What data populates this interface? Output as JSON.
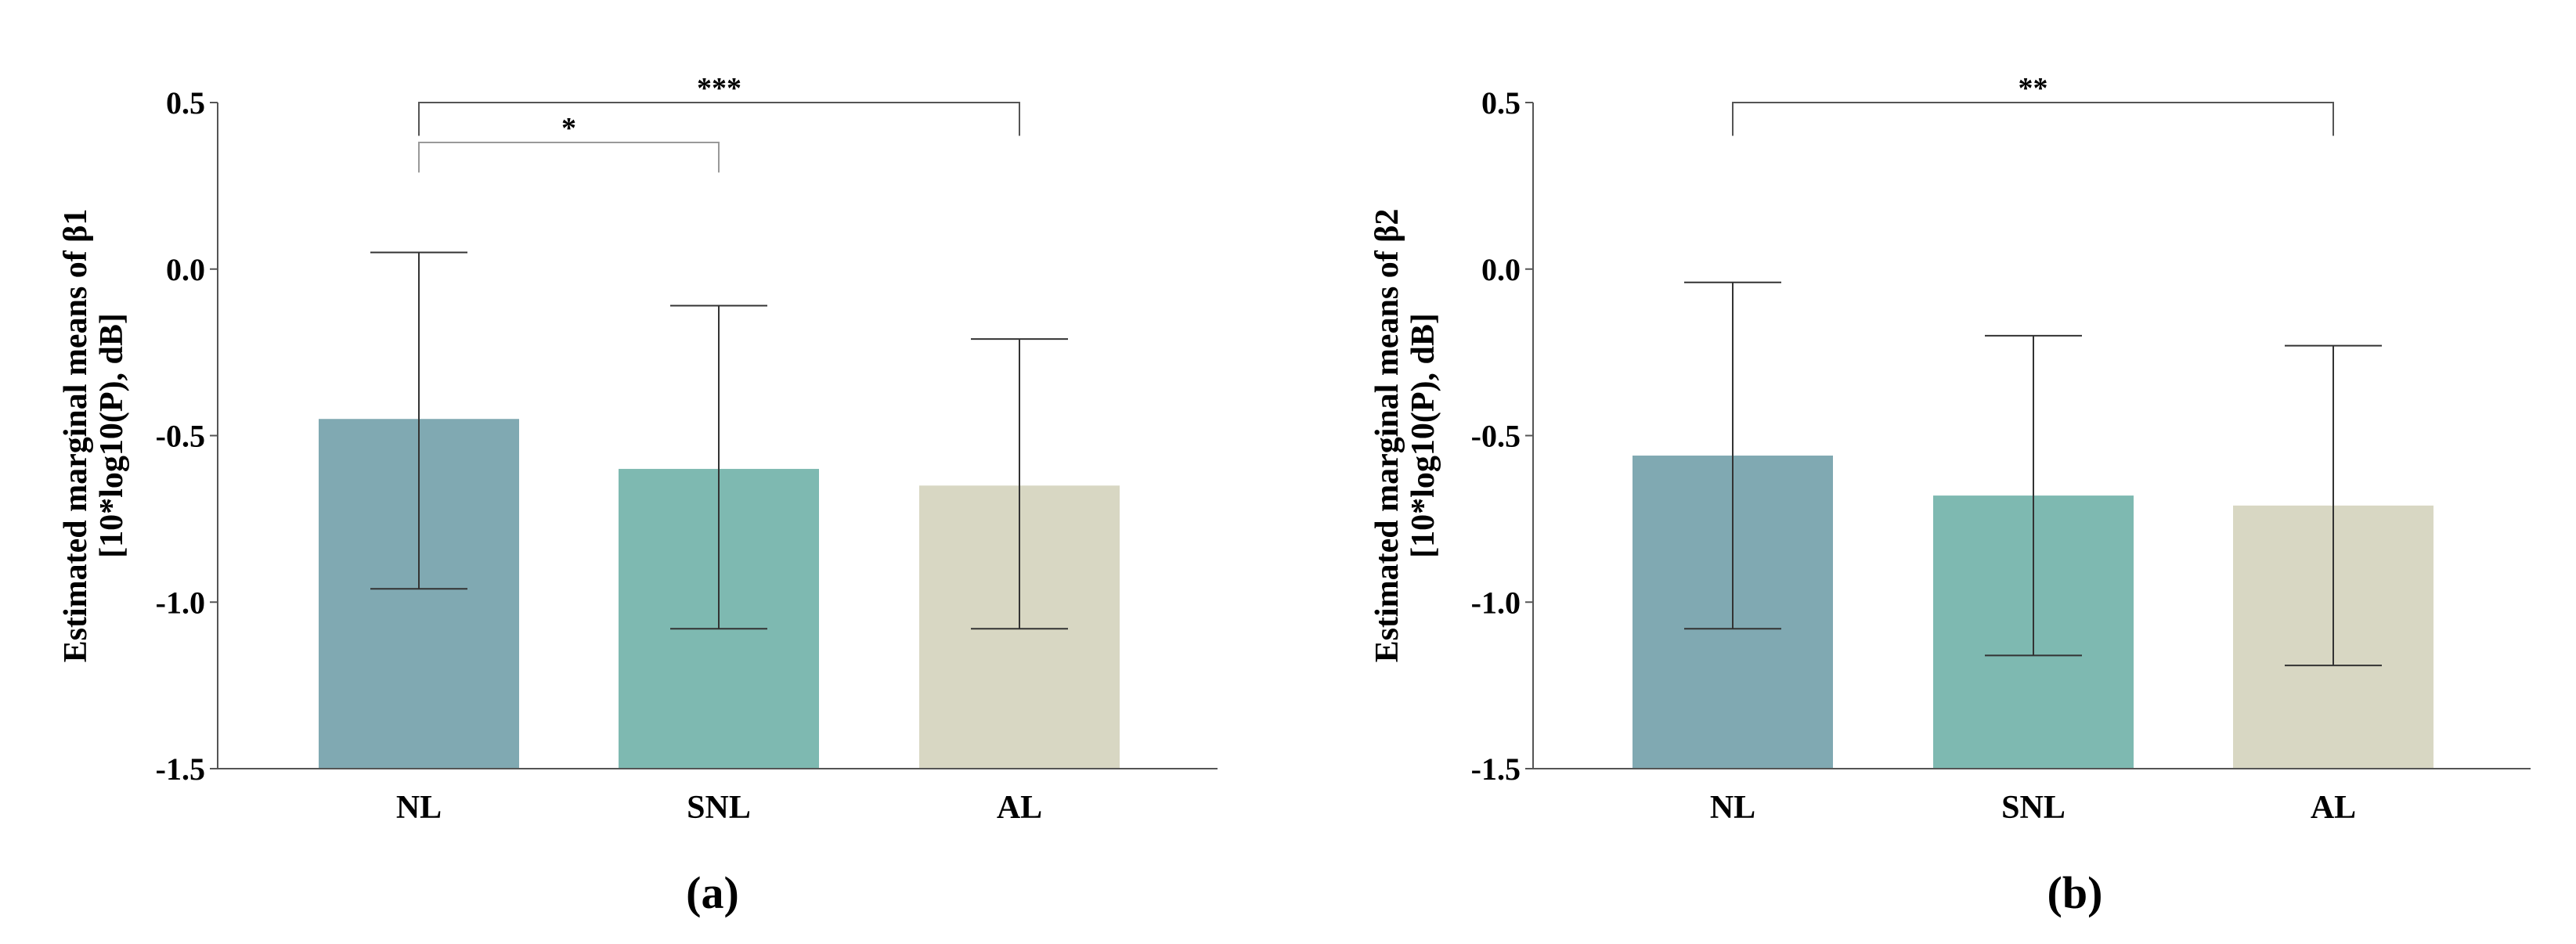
{
  "chart_data": [
    {
      "type": "bar",
      "panel_label": "(a)",
      "ylabel_lines": [
        "Estimated marginal means of β1",
        "[10*log10(P), dB]"
      ],
      "xlabel": "",
      "categories": [
        "NL",
        "SNL",
        "AL"
      ],
      "values": [
        -0.45,
        -0.6,
        -0.65
      ],
      "error_low": [
        -0.96,
        -1.08,
        -1.08
      ],
      "error_high": [
        0.05,
        -0.11,
        -0.21
      ],
      "bar_colors": [
        "#80a9b2",
        "#7eb9b1",
        "#d8d7c3"
      ],
      "ylim": [
        -1.5,
        0.5
      ],
      "yticks": [
        0.5,
        0.0,
        -0.5,
        -1.0,
        -1.5
      ],
      "ytick_labels": [
        "0.5",
        "0.0",
        "-0.5",
        "-1.0",
        "-1.5"
      ],
      "significance": [
        {
          "from": "NL",
          "to": "AL",
          "label": "***",
          "y": 0.5,
          "y_end": 0.4
        },
        {
          "from": "NL",
          "to": "SNL",
          "label": "*",
          "y": 0.38,
          "y_end": 0.29
        }
      ],
      "grid": false,
      "legend": "none"
    },
    {
      "type": "bar",
      "panel_label": "(b)",
      "ylabel_lines": [
        "Estimated marginal means of β2",
        "[10*log10(P), dB]"
      ],
      "xlabel": "",
      "categories": [
        "NL",
        "SNL",
        "AL"
      ],
      "values": [
        -0.56,
        -0.68,
        -0.71
      ],
      "error_low": [
        -1.08,
        -1.16,
        -1.19
      ],
      "error_high": [
        -0.04,
        -0.2,
        -0.23
      ],
      "bar_colors": [
        "#80a9b2",
        "#7eb9b1",
        "#d8d7c3"
      ],
      "ylim": [
        -1.5,
        0.5
      ],
      "yticks": [
        0.5,
        0.0,
        -0.5,
        -1.0,
        -1.5
      ],
      "ytick_labels": [
        "0.5",
        "0.0",
        "-0.5",
        "-1.0",
        "-1.5"
      ],
      "significance": [
        {
          "from": "NL",
          "to": "AL",
          "label": "**",
          "y": 0.5,
          "y_end": 0.4
        }
      ],
      "grid": false,
      "legend": "none"
    }
  ]
}
